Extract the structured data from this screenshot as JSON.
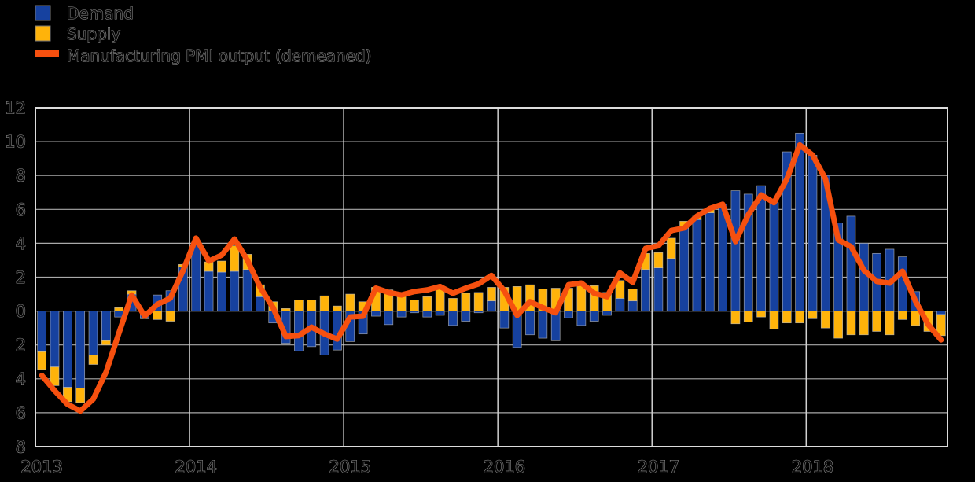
{
  "page": {
    "background": "#000000"
  },
  "legend": {
    "position": "top-left",
    "items": [
      {
        "label": "Demand",
        "marker": "square",
        "color": "#16419F"
      },
      {
        "label": "Supply",
        "marker": "square",
        "color": "#FFB30A"
      },
      {
        "label": "Manufacturing PMI output (demeaned)",
        "marker": "line",
        "color": "#F6500F"
      }
    ]
  },
  "axes": {
    "y_tick_values": [
      12,
      10,
      8,
      6,
      4,
      2,
      0,
      -2,
      -4,
      -6,
      -8
    ],
    "y_tick_labels": [
      "12",
      "10",
      "8",
      "6",
      "4",
      "2",
      "0",
      "2",
      "4",
      "6",
      "8"
    ],
    "x_tick_labels": [
      "2013",
      "2014",
      "2015",
      "2016",
      "2017",
      "2018"
    ],
    "grid_color": "#A9A9A9",
    "year_line_color": "#D0D0D0",
    "border_color": "#DCDCDC",
    "label_outline_color": "#8F8F8F"
  },
  "chart_data": {
    "type": "bar",
    "subtype": "stacked-bars-with-line-overlay",
    "title": "",
    "xlabel": "",
    "ylabel": "",
    "ylim": [
      -8,
      12
    ],
    "y_tick_step": 2,
    "grid": true,
    "legend_position": "top-left",
    "x": [
      "2013-01",
      "2013-02",
      "2013-03",
      "2013-04",
      "2013-05",
      "2013-06",
      "2013-07",
      "2013-08",
      "2013-09",
      "2013-10",
      "2013-11",
      "2013-12",
      "2014-01",
      "2014-02",
      "2014-03",
      "2014-04",
      "2014-05",
      "2014-06",
      "2014-07",
      "2014-08",
      "2014-09",
      "2014-10",
      "2014-11",
      "2014-12",
      "2015-01",
      "2015-02",
      "2015-03",
      "2015-04",
      "2015-05",
      "2015-06",
      "2015-07",
      "2015-08",
      "2015-09",
      "2015-10",
      "2015-11",
      "2015-12",
      "2016-01",
      "2016-02",
      "2016-03",
      "2016-04",
      "2016-05",
      "2016-06",
      "2016-07",
      "2016-08",
      "2016-09",
      "2016-10",
      "2016-11",
      "2016-12",
      "2017-01",
      "2017-02",
      "2017-03",
      "2017-04",
      "2017-05",
      "2017-06",
      "2017-07",
      "2017-08",
      "2017-09",
      "2017-10",
      "2017-11",
      "2017-12",
      "2018-01",
      "2018-02",
      "2018-03",
      "2018-04",
      "2018-05",
      "2018-06",
      "2018-07",
      "2018-08",
      "2018-09",
      "2018-10",
      "2018-11"
    ],
    "series": [
      {
        "name": "Demand",
        "type": "bar",
        "stacked": true,
        "color": "#16419F",
        "values": [
          -2.4,
          -3.3,
          -4.5,
          -4.55,
          -2.6,
          -1.75,
          -0.35,
          1.0,
          -0.4,
          0.95,
          1.2,
          2.6,
          3.9,
          2.35,
          2.3,
          2.35,
          2.45,
          0.85,
          -0.7,
          -1.9,
          -2.35,
          -2.1,
          -2.6,
          -2.3,
          -1.8,
          -1.35,
          -0.3,
          -0.8,
          -0.35,
          -0.1,
          -0.35,
          -0.25,
          -0.85,
          -0.6,
          -0.1,
          0.6,
          -1.0,
          -2.15,
          -1.4,
          -1.6,
          -1.75,
          -0.4,
          -0.85,
          -0.6,
          -0.25,
          0.75,
          0.6,
          2.45,
          2.55,
          3.1,
          4.9,
          5.4,
          5.8,
          6.3,
          7.1,
          6.9,
          7.4,
          6.4,
          9.4,
          10.5,
          9.2,
          8.0,
          5.2,
          5.6,
          4.0,
          3.4,
          3.65,
          3.2,
          1.15,
          0.0,
          -0.2
        ]
      },
      {
        "name": "Supply",
        "type": "bar",
        "stacked": true,
        "color": "#FFB30A",
        "values": [
          -1.05,
          -1.1,
          -0.85,
          -0.85,
          -0.55,
          -0.25,
          0.2,
          0.2,
          -0.05,
          -0.5,
          -0.6,
          0.15,
          0.15,
          0.55,
          0.65,
          1.5,
          0.9,
          0.7,
          0.55,
          0.15,
          0.65,
          0.65,
          0.9,
          0.3,
          1.0,
          0.55,
          1.4,
          1.25,
          0.9,
          0.65,
          0.85,
          1.3,
          0.75,
          1.05,
          1.1,
          0.8,
          1.4,
          1.45,
          1.55,
          1.3,
          1.35,
          1.35,
          1.6,
          1.5,
          1.1,
          1.05,
          0.7,
          0.95,
          0.9,
          1.2,
          0.4,
          0.2,
          0.25,
          0.0,
          -0.75,
          -0.65,
          -0.35,
          -1.05,
          -0.7,
          -0.7,
          -0.45,
          -1.0,
          -1.6,
          -1.4,
          -1.4,
          -1.2,
          -1.4,
          -0.5,
          -0.85,
          -1.2,
          -1.25
        ]
      },
      {
        "name": "Manufacturing PMI output (demeaned)",
        "type": "line",
        "color": "#F6500F",
        "values": [
          -3.8,
          -4.7,
          -5.5,
          -5.9,
          -5.2,
          -3.6,
          -1.3,
          0.95,
          -0.3,
          0.4,
          0.75,
          2.4,
          4.3,
          2.95,
          3.3,
          4.25,
          3.0,
          1.4,
          0.2,
          -1.5,
          -1.45,
          -0.95,
          -1.35,
          -1.65,
          -0.35,
          -0.3,
          1.35,
          1.1,
          0.95,
          1.15,
          1.25,
          1.45,
          1.05,
          1.35,
          1.6,
          2.1,
          1.2,
          -0.25,
          0.55,
          0.2,
          -0.1,
          1.55,
          1.65,
          1.05,
          0.85,
          2.25,
          1.7,
          3.7,
          3.85,
          4.75,
          4.9,
          5.6,
          6.05,
          6.3,
          4.1,
          5.7,
          6.85,
          6.4,
          7.8,
          9.8,
          9.2,
          7.8,
          4.2,
          3.8,
          2.4,
          1.75,
          1.65,
          2.35,
          0.6,
          -0.8,
          -1.7
        ]
      }
    ]
  }
}
